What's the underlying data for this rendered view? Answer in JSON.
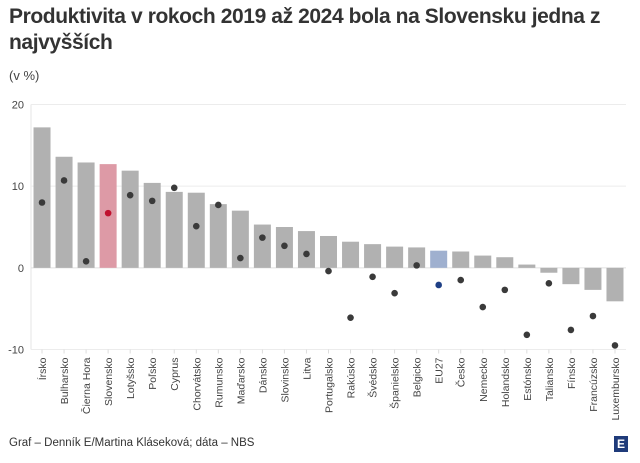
{
  "header": {
    "title": "Produktivita v rokoch 2019 až 2024 bola na Slovensku jedna z najvyšších",
    "subtitle": "(v %)"
  },
  "footer": {
    "source": "Graf – Denník E/Martina Kláseková; dáta – NBS",
    "logo": "E"
  },
  "colors": {
    "bar": "#b1b1b1",
    "highlight_bar": "#dd9aa6",
    "eu_bar": "#9fb0cf",
    "dot": "#3a3a3a",
    "highlight_dot": "#c0112f",
    "eu_dot": "#1e3f85"
  },
  "chart_data": {
    "type": "bar",
    "title": "Produktivita v rokoch 2019 až 2024 bola na Slovensku jedna z najvyšších",
    "ylabel": "(v %)",
    "ylim": [
      -10,
      20
    ],
    "yticks": [
      -10,
      0,
      10,
      20
    ],
    "grid": true,
    "categories": [
      "Írsko",
      "Bulharsko",
      "Čierna Hora",
      "Slovensko",
      "Lotyšsko",
      "Poľsko",
      "Cyprus",
      "Chorvátsko",
      "Rumunsko",
      "Maďarsko",
      "Dánsko",
      "Slovinsko",
      "Litva",
      "Portugalsko",
      "Rakúsko",
      "Švédsko",
      "Španielsko",
      "Belgicko",
      "EU27",
      "Česko",
      "Nemecko",
      "Holandsko",
      "Estónsko",
      "Taliansko",
      "Fínsko",
      "Francúzsko",
      "Luxembursko"
    ],
    "series": [
      {
        "name": "bars",
        "type": "bar",
        "values": [
          17.2,
          13.6,
          12.9,
          12.7,
          11.9,
          10.4,
          9.3,
          9.2,
          7.8,
          7.0,
          5.3,
          5.0,
          4.5,
          3.9,
          3.2,
          2.9,
          2.6,
          2.5,
          2.1,
          2.0,
          1.5,
          1.3,
          0.4,
          -0.6,
          -2.0,
          -2.7,
          -4.1
        ]
      },
      {
        "name": "dots",
        "type": "scatter",
        "values": [
          8.0,
          10.7,
          0.8,
          6.7,
          8.9,
          8.2,
          9.8,
          5.1,
          7.7,
          1.2,
          3.7,
          2.7,
          1.7,
          -0.4,
          -6.1,
          -1.1,
          -3.1,
          0.3,
          -2.1,
          -1.5,
          -4.8,
          -2.7,
          -8.2,
          -1.9,
          -7.6,
          -5.9,
          -9.5
        ]
      }
    ],
    "highlight": {
      "Slovensko": "highlight",
      "EU27": "eu"
    }
  }
}
